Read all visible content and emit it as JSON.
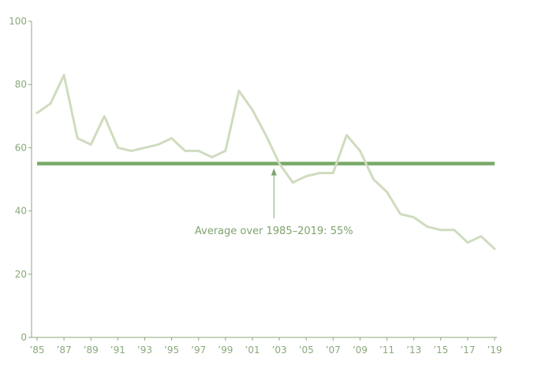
{
  "colors": {
    "series_line": "#cfdcbf",
    "average_line": "#79a968",
    "axis": "#8aa97b",
    "tick_label": "#8aa97b",
    "annotation": "#7ea36e"
  },
  "chart_data": {
    "type": "line",
    "x": [
      1985,
      1986,
      1987,
      1988,
      1989,
      1990,
      1991,
      1992,
      1993,
      1994,
      1995,
      1996,
      1997,
      1998,
      1999,
      2000,
      2001,
      2002,
      2003,
      2004,
      2005,
      2006,
      2007,
      2008,
      2009,
      2010,
      2011,
      2012,
      2013,
      2014,
      2015,
      2016,
      2017,
      2018,
      2019
    ],
    "series": [
      {
        "values": [
          71,
          74,
          83,
          63,
          61,
          70,
          60,
          59,
          60,
          61,
          63,
          59,
          59,
          57,
          59,
          78,
          72,
          64,
          55,
          49,
          51,
          52,
          52,
          64,
          59,
          50,
          46,
          39,
          38,
          35,
          34,
          34,
          30,
          32,
          28
        ]
      }
    ],
    "reference_line": {
      "value": 55,
      "x_start": 1985,
      "x_end": 2019
    },
    "annotation": {
      "text": "Average over 1985–2019: 55%",
      "points_to_x": 2002.6,
      "points_to_y": 55
    },
    "x_tick_labels": [
      "’85",
      "’87",
      "’89",
      "’91",
      "’93",
      "’95",
      "’97",
      "’99",
      "’01",
      "’03",
      "’05",
      "’07",
      "’09",
      "’11",
      "’13",
      "’15",
      "’17",
      "’19"
    ],
    "x_tick_values": [
      1985,
      1987,
      1989,
      1991,
      1993,
      1995,
      1997,
      1999,
      2001,
      2003,
      2005,
      2007,
      2009,
      2011,
      2013,
      2015,
      2017,
      2019
    ],
    "y_ticks": [
      0,
      20,
      40,
      60,
      80,
      100
    ],
    "xlim": [
      1985,
      2019
    ],
    "ylim": [
      0,
      100
    ],
    "grid": false,
    "legend": false
  }
}
